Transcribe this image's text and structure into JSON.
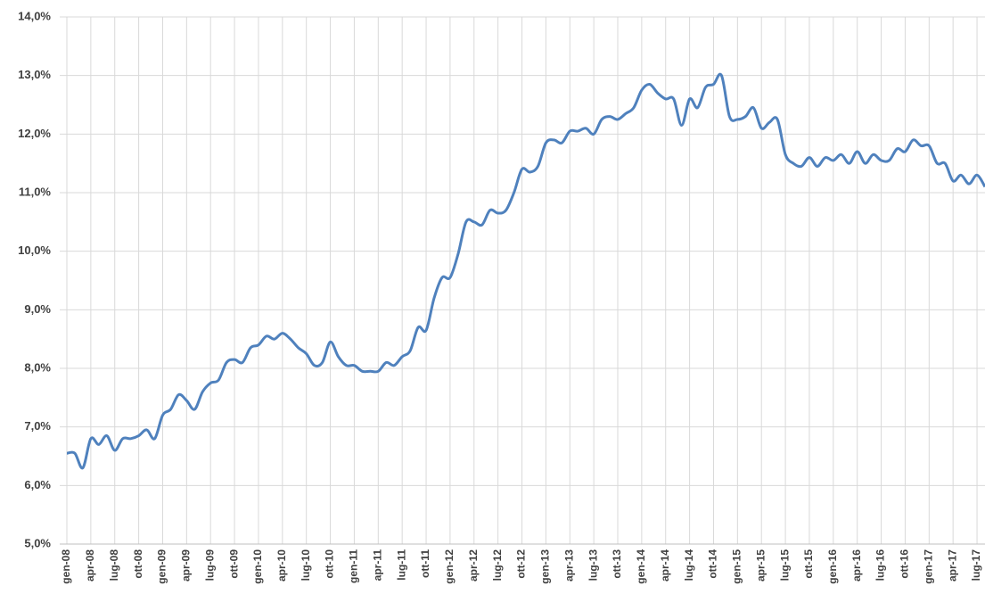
{
  "chart_data": {
    "type": "line",
    "categories": [
      "gen-08",
      null,
      null,
      "apr-08",
      null,
      null,
      "lug-08",
      null,
      null,
      "ott-08",
      null,
      null,
      "gen-09",
      null,
      null,
      "apr-09",
      null,
      null,
      "lug-09",
      null,
      null,
      "ott-09",
      null,
      null,
      "gen-10",
      null,
      null,
      "apr-10",
      null,
      null,
      "lug-10",
      null,
      null,
      "ott-10",
      null,
      null,
      "gen-11",
      null,
      null,
      "apr-11",
      null,
      null,
      "lug-11",
      null,
      null,
      "ott-11",
      null,
      null,
      "gen-12",
      null,
      null,
      "apr-12",
      null,
      null,
      "lug-12",
      null,
      null,
      "ott-12",
      null,
      null,
      "gen-13",
      null,
      null,
      "apr-13",
      null,
      null,
      "lug-13",
      null,
      null,
      "ott-13",
      null,
      null,
      "gen-14",
      null,
      null,
      "apr-14",
      null,
      null,
      "lug-14",
      null,
      null,
      "ott-14",
      null,
      null,
      "gen-15",
      null,
      null,
      "apr-15",
      null,
      null,
      "lug-15",
      null,
      null,
      "ott-15",
      null,
      null,
      "gen-16",
      null,
      null,
      "apr-16",
      null,
      null,
      "lug-16",
      null,
      null,
      "ott-16",
      null,
      null,
      "gen-17",
      null,
      null,
      "apr-17",
      null,
      null,
      "lug-17",
      null
    ],
    "series": [
      {
        "color": "#4f81bd",
        "values": [
          6.55,
          6.55,
          6.3,
          6.8,
          6.7,
          6.85,
          6.6,
          6.8,
          6.8,
          6.85,
          6.95,
          6.8,
          7.2,
          7.3,
          7.55,
          7.45,
          7.3,
          7.6,
          7.75,
          7.8,
          8.1,
          8.15,
          8.1,
          8.35,
          8.4,
          8.55,
          8.5,
          8.6,
          8.5,
          8.35,
          8.25,
          8.05,
          8.1,
          8.45,
          8.2,
          8.05,
          8.05,
          7.95,
          7.95,
          7.95,
          8.1,
          8.05,
          8.2,
          8.3,
          8.7,
          8.65,
          9.2,
          9.55,
          9.55,
          9.95,
          10.5,
          10.5,
          10.45,
          10.7,
          10.65,
          10.7,
          11.0,
          11.4,
          11.35,
          11.45,
          11.85,
          11.9,
          11.85,
          12.05,
          12.05,
          12.1,
          12.0,
          12.25,
          12.3,
          12.25,
          12.35,
          12.45,
          12.75,
          12.85,
          12.7,
          12.6,
          12.6,
          12.15,
          12.6,
          12.45,
          12.8,
          12.85,
          13.0,
          12.3,
          12.25,
          12.3,
          12.45,
          12.1,
          12.2,
          12.25,
          11.65,
          11.5,
          11.45,
          11.6,
          11.45,
          11.6,
          11.55,
          11.65,
          11.5,
          11.7,
          11.5,
          11.65,
          11.55,
          11.55,
          11.75,
          11.7,
          11.9,
          11.8,
          11.8,
          11.5,
          11.5,
          11.2,
          11.3,
          11.15,
          11.3,
          11.1
        ]
      }
    ],
    "ylim": [
      5,
      14
    ],
    "yticks": [
      {
        "value": 5,
        "label": "5,0%"
      },
      {
        "value": 6,
        "label": "6,0%"
      },
      {
        "value": 7,
        "label": "7,0%"
      },
      {
        "value": 8,
        "label": "8,0%"
      },
      {
        "value": 9,
        "label": "9,0%"
      },
      {
        "value": 10,
        "label": "10,0%"
      },
      {
        "value": 11,
        "label": "11,0%"
      },
      {
        "value": 12,
        "label": "12,0%"
      },
      {
        "value": 13,
        "label": "13,0%"
      },
      {
        "value": 14,
        "label": "14,0%"
      }
    ],
    "grid": true
  }
}
